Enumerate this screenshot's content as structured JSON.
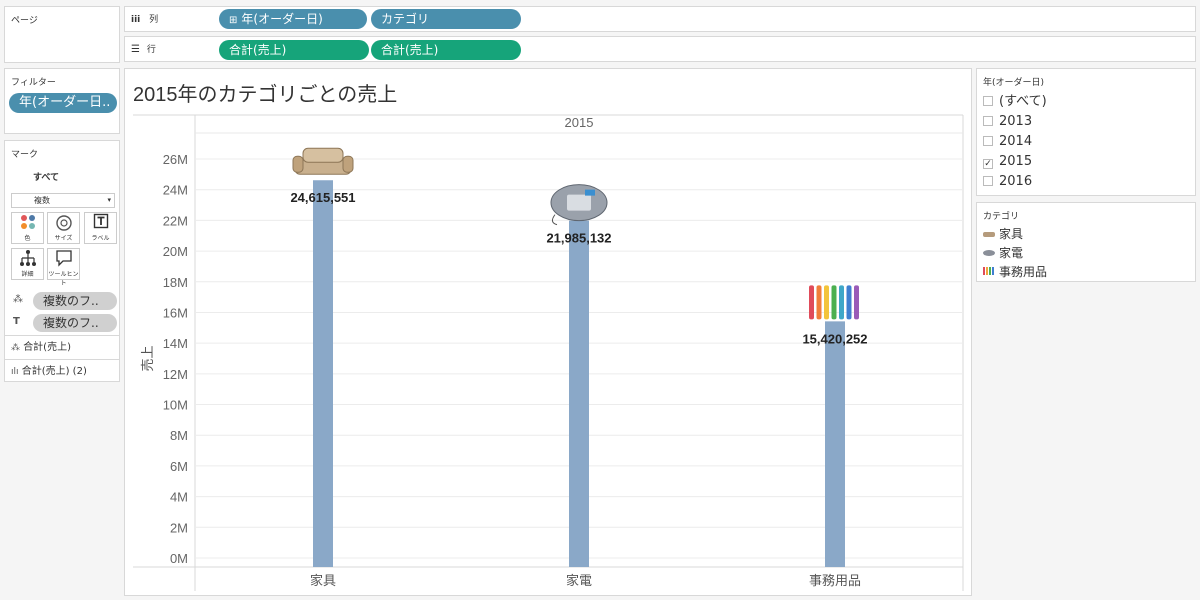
{
  "pages_panel": {
    "title": "ページ"
  },
  "columns_shelf": {
    "label": "列",
    "icon": "columns-icon",
    "pills": [
      "年(オーダー日)",
      "カテゴリ"
    ],
    "expand_glyph": "⊞"
  },
  "rows_shelf": {
    "label": "行",
    "icon": "rows-icon",
    "pills": [
      "合計(売上)",
      "合計(売上)"
    ]
  },
  "filters": {
    "title": "フィルター",
    "pill": "年(オーダー日.."
  },
  "marks": {
    "title": "マーク",
    "all_label": "すべて",
    "mark_type": "複数",
    "buttons": [
      {
        "label": "色",
        "icon": "color-icon"
      },
      {
        "label": "サイズ",
        "icon": "size-icon"
      },
      {
        "label": "ラベル",
        "icon": "label-icon"
      },
      {
        "label": "詳細",
        "icon": "detail-icon"
      },
      {
        "label": "ツールヒント",
        "icon": "tooltip-icon"
      }
    ],
    "field_pills": [
      "複数のフ..",
      "複数のフ.."
    ],
    "sections": [
      "合計(売上)",
      "合計(売上) (2)"
    ]
  },
  "chart_data": {
    "type": "bar",
    "title": "2015年のカテゴリごとの売上",
    "column_header": "2015",
    "ylabel": "売上",
    "categories": [
      "家具",
      "家電",
      "事務用品"
    ],
    "values": [
      24615551,
      21985132,
      15420252
    ],
    "value_labels": [
      "24,615,551",
      "21,985,132",
      "15,420,252"
    ],
    "yticks": [
      0,
      2000000,
      4000000,
      6000000,
      8000000,
      10000000,
      12000000,
      14000000,
      16000000,
      18000000,
      20000000,
      22000000,
      24000000,
      26000000
    ],
    "ytick_labels": [
      "0M",
      "2M",
      "4M",
      "6M",
      "8M",
      "10M",
      "12M",
      "14M",
      "16M",
      "18M",
      "20M",
      "22M",
      "24M",
      "26M"
    ],
    "ylim": [
      0,
      26000000
    ],
    "bar_color": "#8aa8c8",
    "grid": true
  },
  "year_filter": {
    "title": "年(オーダー日)",
    "options": [
      {
        "label": "(すべて)",
        "checked": false
      },
      {
        "label": "2013",
        "checked": false
      },
      {
        "label": "2014",
        "checked": false
      },
      {
        "label": "2015",
        "checked": true
      },
      {
        "label": "2016",
        "checked": false
      }
    ]
  },
  "category_legend": {
    "title": "カテゴリ",
    "items": [
      {
        "label": "家具",
        "icon": "sofa-icon"
      },
      {
        "label": "家電",
        "icon": "phone-icon"
      },
      {
        "label": "事務用品",
        "icon": "pens-icon"
      }
    ]
  },
  "colors": {
    "blue_pill": "#4a8fad",
    "green_pill": "#16a47a"
  }
}
